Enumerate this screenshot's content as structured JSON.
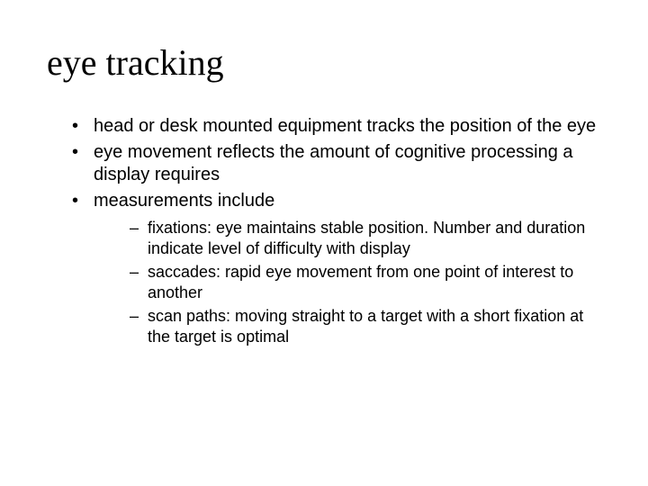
{
  "slide": {
    "title": "eye tracking",
    "title_font_family": "Comic Sans MS",
    "title_font_size_pt": 40,
    "body_font_family": "Arial",
    "body_font_size_pt": 20,
    "sub_font_size_pt": 18,
    "text_color": "#000000",
    "background_color": "#ffffff",
    "bullets": [
      {
        "text": "head or desk mounted equipment tracks the position of the eye"
      },
      {
        "text": "eye movement reflects the amount of cognitive processing a display requires"
      },
      {
        "text": "measurements include"
      }
    ],
    "sub_bullets": [
      {
        "text": "fixations: eye maintains stable position. Number and duration indicate level of difficulty with display"
      },
      {
        "text": "saccades: rapid eye movement from one point of interest to another"
      },
      {
        "text": "scan paths: moving straight to a target with a short fixation at the target is optimal"
      }
    ]
  }
}
